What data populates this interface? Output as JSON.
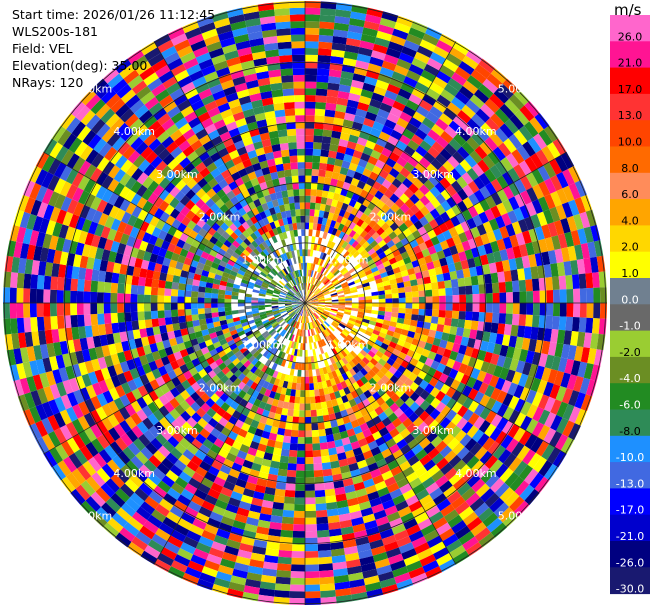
{
  "header": {
    "start_time": "Start time: 2026/01/26 11:12:45",
    "station": "WLS200s-181",
    "field": "Field: VEL",
    "elevation": "Elevation(deg): 35.00",
    "nrays": "NRays: 120"
  },
  "chart_data": {
    "type": "heatmap",
    "projection": "polar-ppi",
    "n_rays": 120,
    "max_range_km": 5.0,
    "range_rings_km": [
      1.0,
      2.0,
      3.0,
      4.0,
      5.0
    ],
    "range_labels": [
      "1.00km",
      "2.00km",
      "3.00km",
      "4.00km",
      "5.00km"
    ],
    "colorbar": {
      "unit": "m/s",
      "tick_labels": [
        "26.0",
        "21.0",
        "17.0",
        "13.0",
        "10.0",
        "8.0",
        "6.0",
        "4.0",
        "2.0",
        "1.0",
        "0.0",
        "-1.0",
        "-2.0",
        "-4.0",
        "-6.0",
        "-8.0",
        "-10.0",
        "-13.0",
        "-17.0",
        "-21.0",
        "-26.0",
        "-30.0"
      ],
      "colors": [
        "#ff66cc",
        "#ff1493",
        "#ff0000",
        "#ff3333",
        "#ff4500",
        "#ff6a00",
        "#ff8c5a",
        "#ffa500",
        "#ffd700",
        "#ffff00",
        "#708090",
        "#696969",
        "#9acd32",
        "#6b8e23",
        "#228b22",
        "#2e8b57",
        "#1e90ff",
        "#4169e1",
        "#0000ff",
        "#0000cd",
        "#000080",
        "#191970"
      ]
    }
  }
}
